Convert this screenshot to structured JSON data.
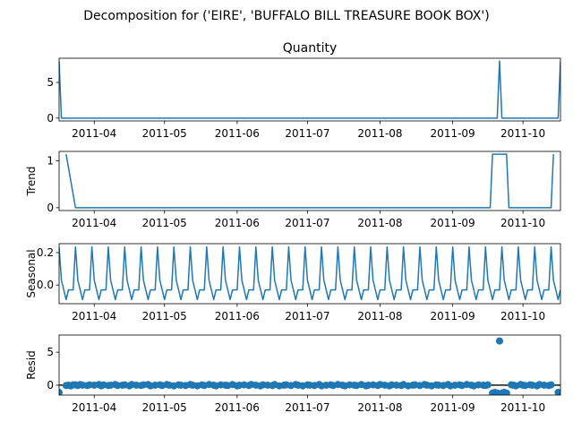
{
  "figure": {
    "suptitle": "Decomposition for ('EIRE', 'BUFFALO BILL TREASURE BOOK BOX')"
  },
  "colors": {
    "series": "#1f77b4",
    "axis": "#000000",
    "zero_line": "#000000",
    "background": "#ffffff"
  },
  "chart_data": [
    {
      "type": "line",
      "title": "Quantity",
      "ylabel": "",
      "xlim": [
        "2011-03-17",
        "2011-10-17"
      ],
      "ylim": [
        -0.4,
        8.4
      ],
      "yticks": [
        0,
        5
      ],
      "xticks": [
        "2011-04",
        "2011-05",
        "2011-06",
        "2011-07",
        "2011-08",
        "2011-09",
        "2011-10"
      ],
      "grid": false,
      "points": [
        [
          "2011-03-17",
          8
        ],
        [
          "2011-03-18",
          0
        ],
        [
          "2011-09-20",
          0
        ],
        [
          "2011-09-21",
          8
        ],
        [
          "2011-09-22",
          0
        ],
        [
          "2011-10-16",
          0
        ],
        [
          "2011-10-17",
          8
        ]
      ]
    },
    {
      "type": "line",
      "title": "",
      "ylabel": "Trend",
      "xlim": [
        "2011-03-17",
        "2011-10-17"
      ],
      "ylim": [
        -0.06,
        1.2
      ],
      "yticks": [
        0,
        1
      ],
      "xticks": [
        "2011-04",
        "2011-05",
        "2011-06",
        "2011-07",
        "2011-08",
        "2011-09",
        "2011-10"
      ],
      "grid": false,
      "points": [
        [
          "2011-03-20",
          1.14
        ],
        [
          "2011-03-24",
          0
        ],
        [
          "2011-09-17",
          0
        ],
        [
          "2011-09-18",
          1.14
        ],
        [
          "2011-09-24",
          1.14
        ],
        [
          "2011-09-25",
          0
        ],
        [
          "2011-10-13",
          0
        ],
        [
          "2011-10-14",
          1.14
        ]
      ]
    },
    {
      "type": "line",
      "title": "",
      "ylabel": "Seasonal",
      "xlim": [
        "2011-03-17",
        "2011-10-17"
      ],
      "ylim": [
        -0.115,
        0.255
      ],
      "yticks": [
        0.0,
        0.2
      ],
      "xticks": [
        "2011-04",
        "2011-05",
        "2011-06",
        "2011-07",
        "2011-08",
        "2011-09",
        "2011-10"
      ],
      "grid": false,
      "period_start": "2011-03-17",
      "period_pattern": [
        0.235,
        0.03,
        -0.03,
        -0.09,
        -0.03,
        -0.03,
        -0.03
      ]
    },
    {
      "type": "scatter",
      "title": "",
      "ylabel": "Resid",
      "xlim": [
        "2011-03-17",
        "2011-10-17"
      ],
      "ylim": [
        -1.5,
        7.6
      ],
      "yticks": [
        0,
        5
      ],
      "xticks": [
        "2011-04",
        "2011-05",
        "2011-06",
        "2011-07",
        "2011-08",
        "2011-09",
        "2011-10"
      ],
      "grid": false,
      "zero_line": true,
      "points": [
        [
          "2011-03-17",
          -1.1
        ],
        [
          "2011-03-20",
          -0.05
        ],
        [
          "2011-03-21",
          0.0
        ],
        [
          "2011-03-22",
          -0.1
        ],
        [
          "2011-03-23",
          0.05
        ],
        [
          "2011-03-24",
          0.05
        ],
        [
          "2011-03-25",
          -0.05
        ],
        [
          "2011-03-26",
          0.1
        ],
        [
          "2011-03-27",
          0.0
        ],
        [
          "2011-03-29",
          -0.05
        ],
        [
          "2011-03-30",
          0.05
        ],
        [
          "2011-04-01",
          0.0
        ],
        [
          "2011-04-03",
          0.1
        ],
        [
          "2011-04-04",
          -0.1
        ],
        [
          "2011-04-05",
          0.05
        ],
        [
          "2011-04-07",
          -0.05
        ],
        [
          "2011-04-08",
          0.0
        ],
        [
          "2011-04-10",
          0.1
        ],
        [
          "2011-04-11",
          -0.05
        ],
        [
          "2011-04-13",
          0.0
        ],
        [
          "2011-04-14",
          0.05
        ],
        [
          "2011-04-16",
          -0.1
        ],
        [
          "2011-04-17",
          0.1
        ],
        [
          "2011-04-19",
          0.0
        ],
        [
          "2011-04-21",
          -0.05
        ],
        [
          "2011-04-22",
          0.05
        ],
        [
          "2011-04-24",
          0.1
        ],
        [
          "2011-04-25",
          -0.1
        ],
        [
          "2011-04-27",
          0.0
        ],
        [
          "2011-04-29",
          0.05
        ],
        [
          "2011-04-30",
          -0.05
        ],
        [
          "2011-05-02",
          0.1
        ],
        [
          "2011-05-03",
          0.0
        ],
        [
          "2011-05-05",
          -0.1
        ],
        [
          "2011-05-07",
          0.05
        ],
        [
          "2011-05-08",
          0.0
        ],
        [
          "2011-05-10",
          -0.05
        ],
        [
          "2011-05-12",
          0.1
        ],
        [
          "2011-05-13",
          0.0
        ],
        [
          "2011-05-15",
          -0.1
        ],
        [
          "2011-05-17",
          0.05
        ],
        [
          "2011-05-18",
          -0.05
        ],
        [
          "2011-05-20",
          0.1
        ],
        [
          "2011-05-22",
          0.0
        ],
        [
          "2011-05-23",
          -0.1
        ],
        [
          "2011-05-25",
          0.05
        ],
        [
          "2011-05-27",
          0.0
        ],
        [
          "2011-05-28",
          -0.05
        ],
        [
          "2011-05-30",
          0.1
        ],
        [
          "2011-06-01",
          -0.1
        ],
        [
          "2011-06-02",
          0.0
        ],
        [
          "2011-06-04",
          0.05
        ],
        [
          "2011-06-06",
          -0.05
        ],
        [
          "2011-06-07",
          0.1
        ],
        [
          "2011-06-09",
          0.0
        ],
        [
          "2011-06-11",
          -0.1
        ],
        [
          "2011-06-12",
          0.05
        ],
        [
          "2011-06-14",
          0.0
        ],
        [
          "2011-06-16",
          -0.05
        ],
        [
          "2011-06-17",
          0.1
        ],
        [
          "2011-06-19",
          -0.1
        ],
        [
          "2011-06-21",
          0.0
        ],
        [
          "2011-06-22",
          0.05
        ],
        [
          "2011-06-24",
          -0.05
        ],
        [
          "2011-06-26",
          0.1
        ],
        [
          "2011-06-27",
          0.0
        ],
        [
          "2011-06-29",
          -0.1
        ],
        [
          "2011-07-01",
          0.05
        ],
        [
          "2011-07-02",
          0.0
        ],
        [
          "2011-07-04",
          -0.05
        ],
        [
          "2011-07-06",
          0.1
        ],
        [
          "2011-07-07",
          -0.1
        ],
        [
          "2011-07-09",
          0.0
        ],
        [
          "2011-07-11",
          0.05
        ],
        [
          "2011-07-12",
          -0.05
        ],
        [
          "2011-07-14",
          0.1
        ],
        [
          "2011-07-16",
          0.0
        ],
        [
          "2011-07-17",
          -0.1
        ],
        [
          "2011-07-19",
          0.05
        ],
        [
          "2011-07-21",
          0.0
        ],
        [
          "2011-07-22",
          -0.05
        ],
        [
          "2011-07-24",
          0.1
        ],
        [
          "2011-07-26",
          -0.1
        ],
        [
          "2011-07-27",
          0.0
        ],
        [
          "2011-07-29",
          0.05
        ],
        [
          "2011-07-31",
          -0.05
        ],
        [
          "2011-08-01",
          0.1
        ],
        [
          "2011-08-03",
          0.0
        ],
        [
          "2011-08-05",
          -0.1
        ],
        [
          "2011-08-06",
          0.05
        ],
        [
          "2011-08-08",
          0.0
        ],
        [
          "2011-08-10",
          -0.05
        ],
        [
          "2011-08-11",
          0.1
        ],
        [
          "2011-08-13",
          -0.1
        ],
        [
          "2011-08-15",
          0.0
        ],
        [
          "2011-08-16",
          0.05
        ],
        [
          "2011-08-18",
          -0.05
        ],
        [
          "2011-08-20",
          0.1
        ],
        [
          "2011-08-21",
          0.0
        ],
        [
          "2011-08-23",
          -0.1
        ],
        [
          "2011-08-25",
          0.05
        ],
        [
          "2011-08-26",
          0.0
        ],
        [
          "2011-08-28",
          -0.05
        ],
        [
          "2011-08-30",
          0.1
        ],
        [
          "2011-08-31",
          -0.1
        ],
        [
          "2011-09-02",
          0.0
        ],
        [
          "2011-09-04",
          0.05
        ],
        [
          "2011-09-05",
          -0.05
        ],
        [
          "2011-09-07",
          0.1
        ],
        [
          "2011-09-09",
          0.0
        ],
        [
          "2011-09-10",
          -0.1
        ],
        [
          "2011-09-12",
          0.05
        ],
        [
          "2011-09-14",
          0.0
        ],
        [
          "2011-09-15",
          -0.05
        ],
        [
          "2011-09-16",
          0.05
        ],
        [
          "2011-09-18",
          -1.2
        ],
        [
          "2011-09-19",
          -1.1
        ],
        [
          "2011-09-20",
          -1.2
        ],
        [
          "2011-09-21",
          6.7
        ],
        [
          "2011-09-22",
          -1.2
        ],
        [
          "2011-09-23",
          -1.1
        ],
        [
          "2011-09-24",
          -1.2
        ],
        [
          "2011-09-26",
          0.05
        ],
        [
          "2011-09-27",
          0.0
        ],
        [
          "2011-09-28",
          -0.1
        ],
        [
          "2011-09-30",
          0.1
        ],
        [
          "2011-10-01",
          0.0
        ],
        [
          "2011-10-02",
          -0.05
        ],
        [
          "2011-10-04",
          0.05
        ],
        [
          "2011-10-05",
          0.0
        ],
        [
          "2011-10-07",
          -0.1
        ],
        [
          "2011-10-08",
          0.1
        ],
        [
          "2011-10-10",
          0.0
        ],
        [
          "2011-10-12",
          -0.05
        ],
        [
          "2011-10-13",
          0.05
        ],
        [
          "2011-10-16",
          -1.1
        ]
      ]
    }
  ]
}
